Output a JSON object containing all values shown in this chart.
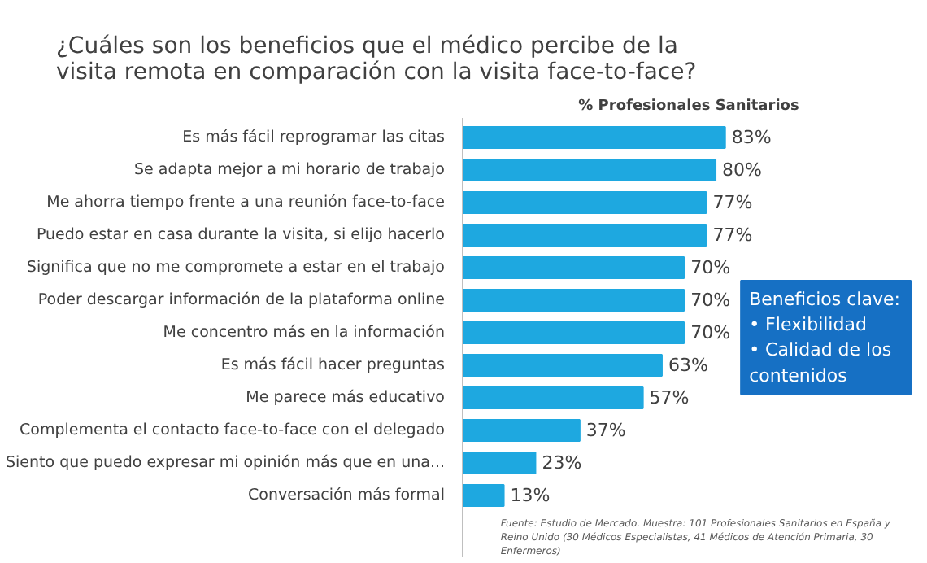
{
  "chart_data": {
    "type": "bar",
    "orientation": "horizontal",
    "title": "¿Cuáles son los beneficios que el médico percibe de la visita remota en comparación con la visita face-to-face?",
    "xlabel": "% Profesionales Sanitarios",
    "categories": [
      "Es más fácil reprogramar las citas",
      "Se adapta mejor a mi horario de trabajo",
      "Me ahorra tiempo frente a una reunión face-to-face",
      "Puedo estar en casa durante la visita, si elijo hacerlo",
      "Significa que no me compromete a estar en el trabajo",
      "Poder descargar información de la plataforma online",
      "Me concentro más en la información",
      "Es más fácil hacer preguntas",
      "Me parece más educativo",
      "Complementa el contacto face-to-face con el delegado",
      "Siento que puedo expresar mi opinión más que en una...",
      "Conversación más formal"
    ],
    "values": [
      83,
      80,
      77,
      77,
      70,
      70,
      70,
      63,
      57,
      37,
      23,
      13
    ],
    "value_labels": [
      "83%",
      "80%",
      "77%",
      "77%",
      "70%",
      "70%",
      "70%",
      "63%",
      "57%",
      "37%",
      "23%",
      "13%"
    ],
    "color": "#1ea8e0",
    "annotations": [
      "Beneficios clave:\n•   Flexibilidad\n•   Calidad de los\n     contenidos",
      "Fuente: Estudio de Mercado. Muestra: 101 Profesionales Sanitarios en España y Reino Unido (30 Médicos Especialistas, 41 Médicos de Atención Primaria, 30 Enfermeros)"
    ],
    "grid": false
  }
}
